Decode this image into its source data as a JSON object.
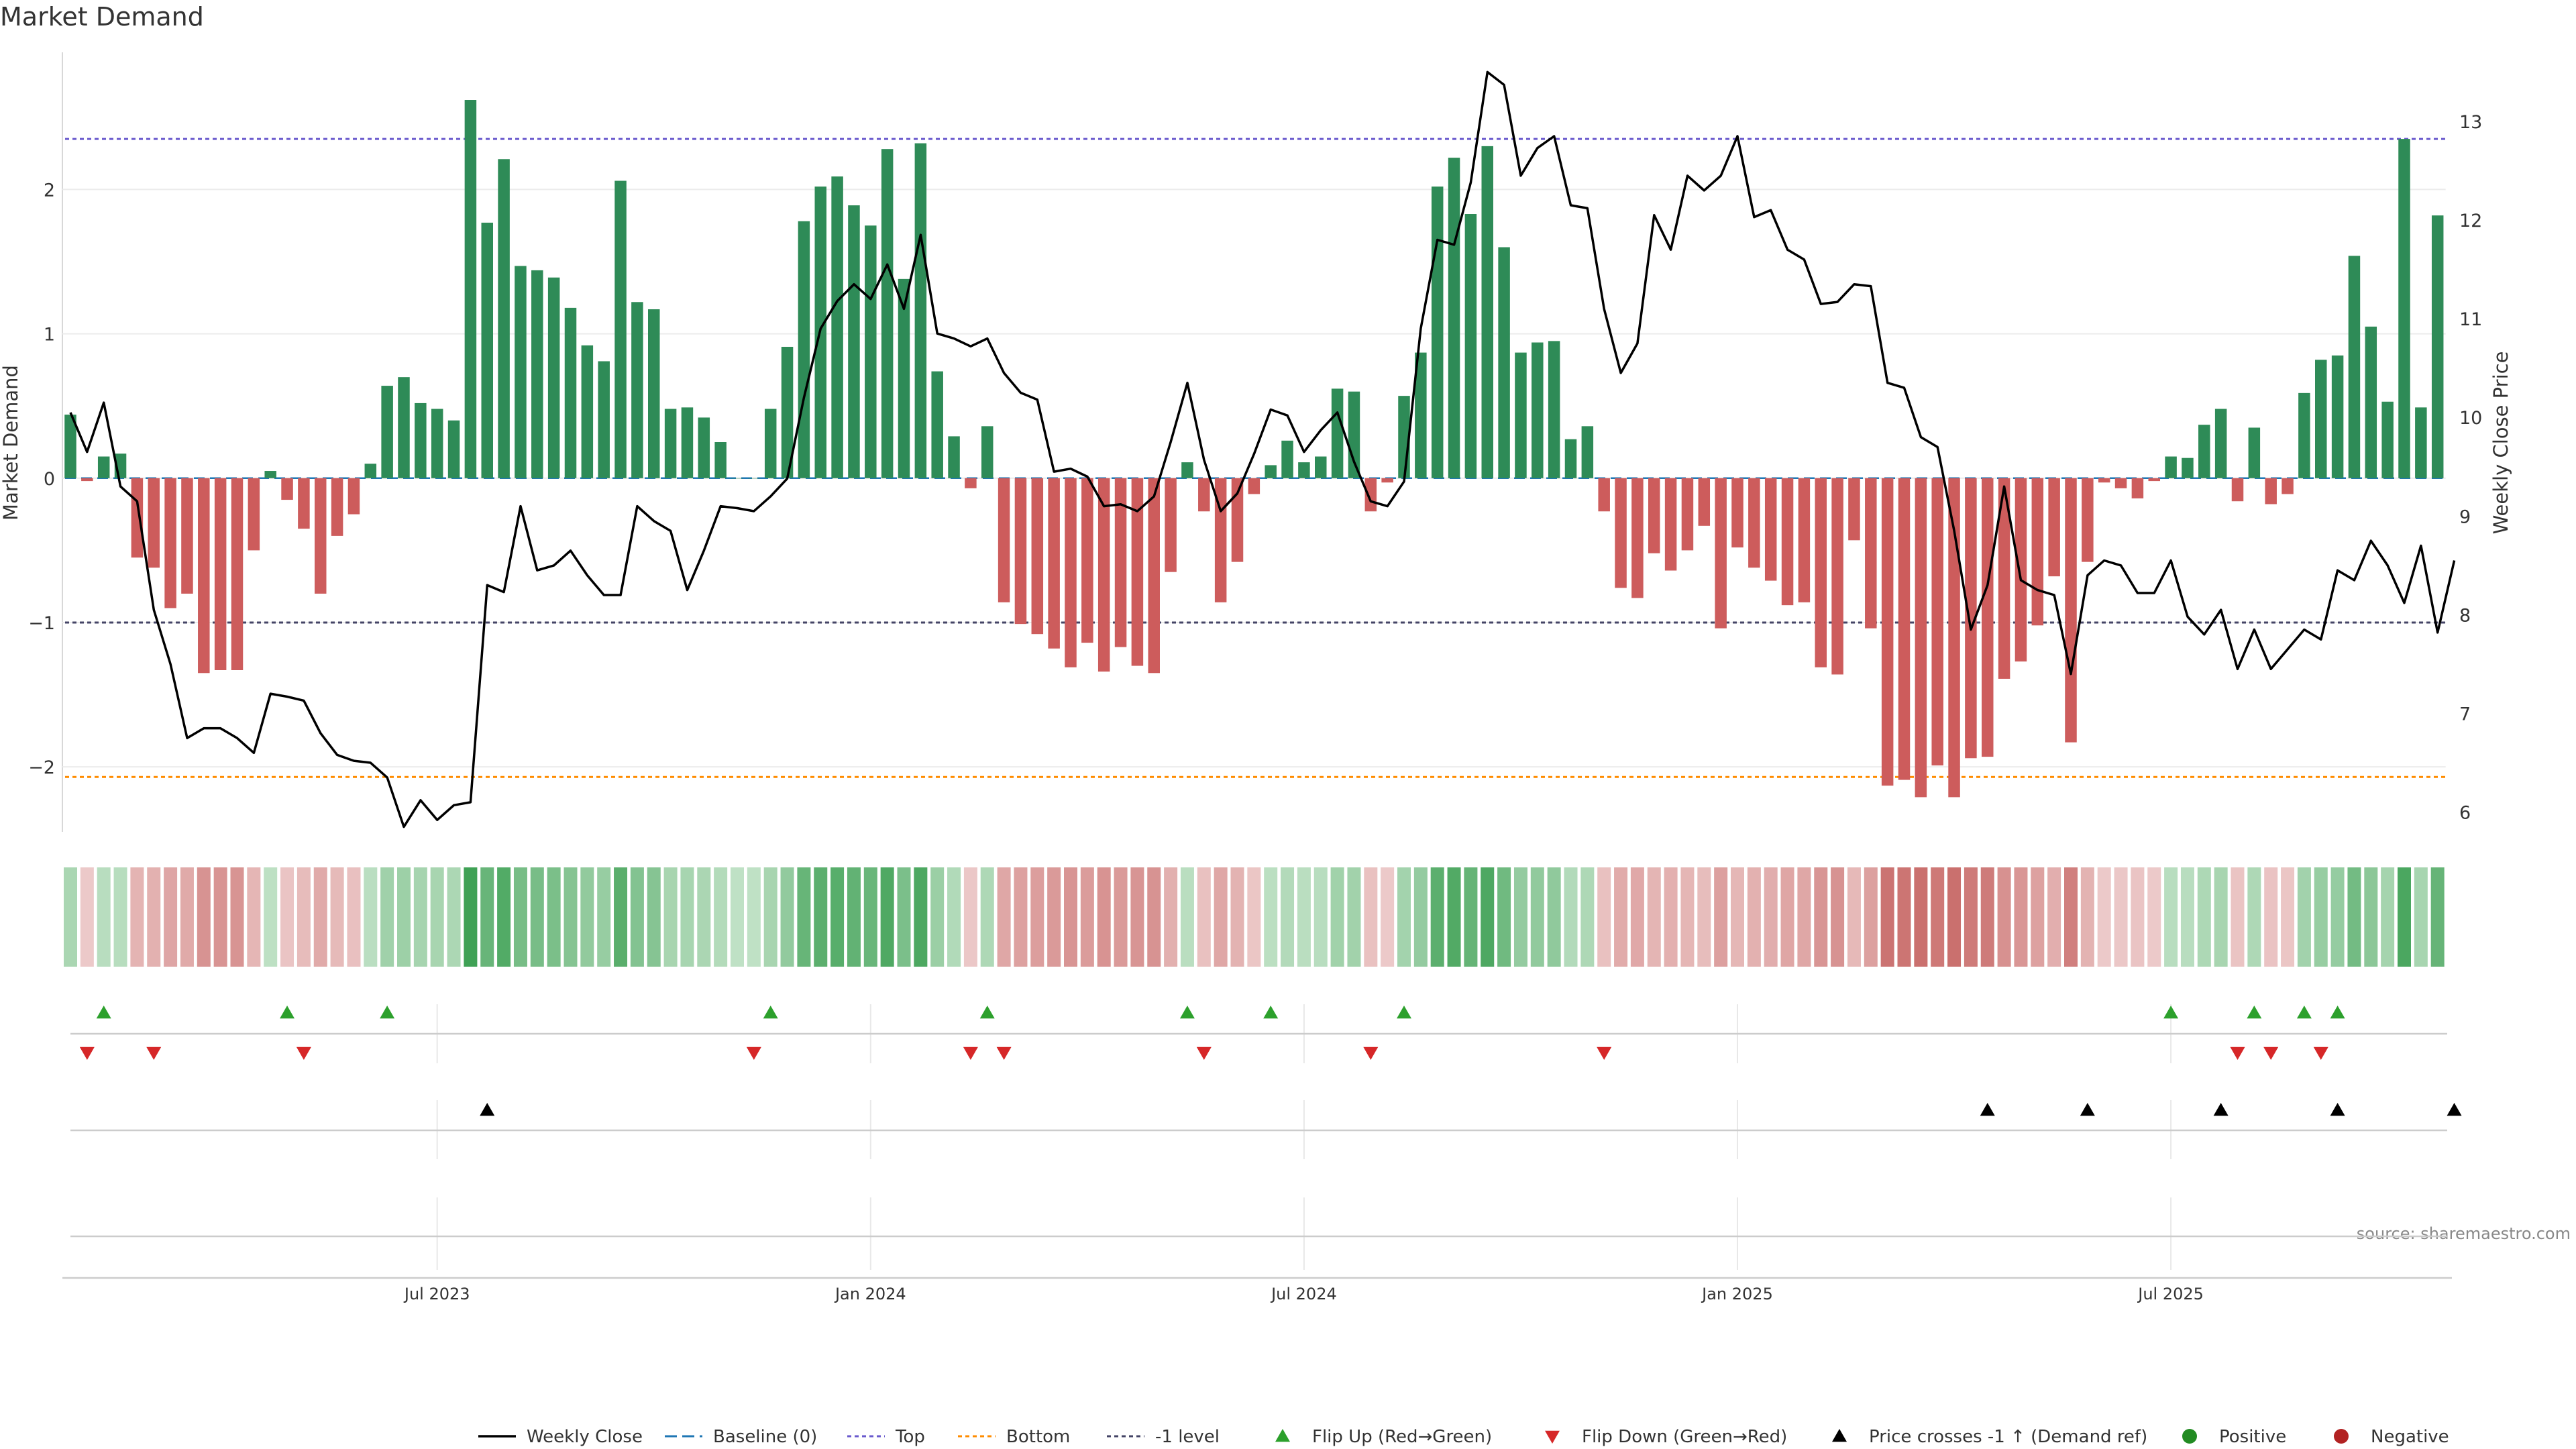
{
  "chart_data": {
    "type": "bar",
    "title": "Market Demand",
    "ylabel_left": "Market Demand",
    "ylabel_right": "Weekly Close Price",
    "source": "source: sharemaestro.com",
    "ylim_left": [
      -2.45,
      2.95
    ],
    "ylim_right": [
      5.8,
      13.7
    ],
    "yticks_left": [
      {
        "v": 2,
        "label": "2"
      },
      {
        "v": 1,
        "label": "1"
      },
      {
        "v": 0,
        "label": "0"
      },
      {
        "v": -1,
        "label": "−1"
      },
      {
        "v": -2,
        "label": "−2"
      }
    ],
    "yticks_right": [
      {
        "v": 13,
        "label": "13"
      },
      {
        "v": 12,
        "label": "12"
      },
      {
        "v": 11,
        "label": "11"
      },
      {
        "v": 10,
        "label": "10"
      },
      {
        "v": 9,
        "label": "9"
      },
      {
        "v": 8,
        "label": "8"
      },
      {
        "v": 7,
        "label": "7"
      },
      {
        "v": 6,
        "label": "6"
      }
    ],
    "xticks": [
      {
        "index": 22,
        "label": "Jul 2023"
      },
      {
        "index": 48,
        "label": "Jan 2024"
      },
      {
        "index": 74,
        "label": "Jul 2024"
      },
      {
        "index": 100,
        "label": "Jan 2025"
      },
      {
        "index": 126,
        "label": "Jul 2025"
      }
    ],
    "ref_lines": {
      "top": 2.35,
      "bottom": -2.07,
      "minus_one": -1,
      "baseline": 0
    },
    "demand": [
      0.44,
      -0.02,
      0.15,
      0.17,
      -0.55,
      -0.62,
      -0.9,
      -0.8,
      -1.35,
      -1.33,
      -1.33,
      -0.5,
      0.05,
      -0.15,
      -0.35,
      -0.8,
      -0.4,
      -0.25,
      0.1,
      0.64,
      0.7,
      0.52,
      0.48,
      0.4,
      2.62,
      1.77,
      2.21,
      1.47,
      1.44,
      1.39,
      1.18,
      0.92,
      0.81,
      2.06,
      1.22,
      1.17,
      0.48,
      0.49,
      0.42,
      0.25,
      0,
      0,
      0.48,
      0.91,
      1.78,
      2.02,
      2.09,
      1.89,
      1.75,
      2.28,
      1.38,
      2.32,
      0.74,
      0.29,
      -0.07,
      0.36,
      -0.86,
      -1.01,
      -1.08,
      -1.18,
      -1.31,
      -1.14,
      -1.34,
      -1.17,
      -1.3,
      -1.35,
      -0.65,
      0.11,
      -0.23,
      -0.86,
      -0.58,
      -0.11,
      0.09,
      0.26,
      0.11,
      0.15,
      0.62,
      0.6,
      -0.23,
      -0.03,
      0.57,
      0.87,
      2.02,
      2.22,
      1.83,
      2.3,
      1.6,
      0.87,
      0.94,
      0.95,
      0.27,
      0.36,
      -0.23,
      -0.76,
      -0.83,
      -0.52,
      -0.64,
      -0.5,
      -0.33,
      -1.04,
      -0.48,
      -0.62,
      -0.71,
      -0.88,
      -0.86,
      -1.31,
      -1.36,
      -0.43,
      -1.04,
      -2.13,
      -2.09,
      -2.21,
      -1.99,
      -2.21,
      -1.94,
      -1.93,
      -1.39,
      -1.27,
      -1.02,
      -0.68,
      -1.83,
      -0.58,
      -0.03,
      -0.07,
      -0.14,
      -0.02,
      0.15,
      0.14,
      0.37,
      0.48,
      -0.16,
      0.35,
      -0.18,
      -0.11,
      0.59,
      0.82,
      0.85,
      1.54,
      1.05,
      0.53,
      2.35,
      0.49,
      1.82
    ],
    "weekly_close": [
      10.05,
      9.65,
      10.15,
      9.3,
      9.15,
      8.05,
      7.5,
      6.75,
      6.85,
      6.85,
      6.75,
      6.6,
      7.2,
      7.17,
      7.13,
      6.8,
      6.58,
      6.52,
      6.5,
      6.35,
      5.85,
      6.12,
      5.92,
      6.07,
      6.1,
      8.3,
      8.23,
      9.1,
      8.45,
      8.5,
      8.65,
      8.4,
      8.2,
      8.2,
      9.1,
      8.95,
      8.85,
      8.25,
      8.65,
      9.1,
      9.08,
      9.05,
      9.2,
      9.38,
      10.2,
      10.9,
      11.18,
      11.35,
      11.2,
      11.55,
      11.1,
      11.85,
      10.85,
      10.8,
      10.72,
      10.8,
      10.45,
      10.25,
      10.18,
      9.45,
      9.48,
      9.4,
      9.1,
      9.12,
      9.05,
      9.2,
      9.75,
      10.35,
      9.57,
      9.05,
      9.23,
      9.63,
      10.08,
      10.02,
      9.65,
      9.87,
      10.05,
      9.55,
      9.15,
      9.1,
      9.35,
      10.9,
      11.8,
      11.75,
      12.38,
      13.5,
      13.37,
      12.45,
      12.73,
      12.85,
      12.15,
      12.12,
      11.1,
      10.45,
      10.75,
      12.05,
      11.7,
      12.45,
      12.3,
      12.45,
      12.85,
      12.03,
      12.1,
      11.7,
      11.6,
      11.15,
      11.17,
      11.35,
      11.33,
      10.35,
      10.3,
      9.8,
      9.7,
      8.85,
      7.85,
      8.3,
      9.3,
      8.35,
      8.25,
      8.2,
      7.4,
      8.4,
      8.55,
      8.5,
      8.22,
      8.22,
      8.55,
      7.98,
      7.8,
      8.05,
      7.45,
      7.85,
      7.45,
      7.65,
      7.85,
      7.75,
      8.45,
      8.35,
      8.75,
      8.5,
      8.12,
      8.7,
      7.82,
      8.55
    ],
    "flip_up_idx": [
      2,
      13,
      19,
      42,
      55,
      67,
      72,
      80,
      126,
      131,
      134,
      136
    ],
    "flip_down_idx": [
      1,
      5,
      14,
      41,
      54,
      56,
      68,
      78,
      92,
      130,
      132,
      135
    ],
    "price_cross_idx": [
      25,
      115,
      121,
      129,
      136,
      143
    ],
    "legend": [
      "Weekly Close",
      "Baseline (0)",
      "Top",
      "Bottom",
      "-1 level",
      "Flip Up (Red→Green)",
      "Flip Down (Green→Red)",
      "Price crosses -1 ↑ (Demand ref)",
      "Positive",
      "Negative"
    ],
    "colors": {
      "positive": "#2e8b57",
      "negative": "#cd5c5c",
      "price": "#000000",
      "baseline": "#1f77b4",
      "top": "#6a5acd",
      "bottom": "#ff8c00",
      "minus_one": "#444466",
      "flip_up": "#2ca02c",
      "flip_down": "#d62728",
      "cross": "#000000",
      "legend_pos": "#228b22",
      "legend_neg": "#b22222"
    }
  }
}
